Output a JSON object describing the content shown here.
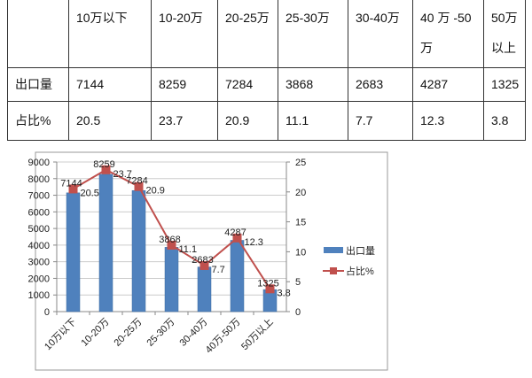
{
  "table": {
    "headers": [
      "",
      "10万以下",
      "10-20万",
      "20-25万",
      "25-30万",
      "30-40万",
      "40 万 -50万",
      "50万以上"
    ],
    "rows": [
      [
        "出口量",
        "7144",
        "8259",
        "7284",
        "3868",
        "2683",
        "4287",
        "1325"
      ],
      [
        "占比%",
        "20.5",
        "23.7",
        "20.9",
        "11.1",
        "7.7",
        "12.3",
        "3.8"
      ]
    ]
  },
  "chart_data": {
    "type": "bar+line",
    "categories": [
      "10万以下",
      "10-20万",
      "20-25万",
      "25-30万",
      "30-40万",
      "40万-50万",
      "50万以上"
    ],
    "series": [
      {
        "name": "出口量",
        "type": "bar",
        "axis": "left",
        "values": [
          7144,
          8259,
          7284,
          3868,
          2683,
          4287,
          1325
        ],
        "color": "#4f81bd"
      },
      {
        "name": "占比%",
        "type": "line",
        "axis": "right",
        "values": [
          20.5,
          23.7,
          20.9,
          11.1,
          7.7,
          12.3,
          3.8
        ],
        "color": "#c0504d"
      }
    ],
    "ylim": [
      0,
      9000
    ],
    "yticks": [
      "0",
      "1000",
      "2000",
      "3000",
      "4000",
      "5000",
      "6000",
      "7000",
      "8000",
      "9000"
    ],
    "y2lim": [
      0,
      25
    ],
    "y2ticks": [
      "0",
      "5",
      "10",
      "15",
      "20",
      "25"
    ],
    "grid": true,
    "legend": "right"
  }
}
